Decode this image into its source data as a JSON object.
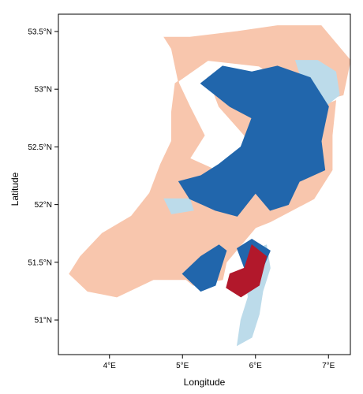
{
  "chart_data": {
    "type": "heatmap",
    "title": "",
    "xlabel": "Longitude",
    "ylabel": "Latitude",
    "xlim": [
      3.3,
      7.3
    ],
    "ylim": [
      50.7,
      53.65
    ],
    "grid": false,
    "legend": "none",
    "x_ticks": [
      {
        "value": 4,
        "label": "4°E"
      },
      {
        "value": 5,
        "label": "5°E"
      },
      {
        "value": 6,
        "label": "6°E"
      },
      {
        "value": 7,
        "label": "7°E"
      }
    ],
    "y_ticks": [
      {
        "value": 51.0,
        "label": "51°N"
      },
      {
        "value": 51.5,
        "label": "51.5°N"
      },
      {
        "value": 52.0,
        "label": "52°N"
      },
      {
        "value": 52.5,
        "label": "52.5°N"
      },
      {
        "value": 53.0,
        "label": "53°N"
      },
      {
        "value": 53.5,
        "label": "53.5°N"
      }
    ],
    "colors": {
      "light_salmon": "#f8c6ad",
      "light_blue": "#bcdbea",
      "dark_blue": "#2166ac",
      "dark_red": "#b2182b"
    },
    "regions": [
      {
        "color": "light_salmon",
        "lon_lat": [
          [
            4.75,
            53.45
          ],
          [
            5.1,
            53.45
          ],
          [
            5.75,
            53.5
          ],
          [
            6.3,
            53.55
          ],
          [
            6.9,
            53.55
          ],
          [
            7.3,
            53.25
          ],
          [
            7.2,
            52.95
          ],
          [
            6.9,
            52.9
          ],
          [
            6.4,
            53.05
          ],
          [
            6.05,
            53.2
          ],
          [
            5.35,
            53.25
          ],
          [
            4.9,
            53.05
          ],
          [
            4.85,
            52.8
          ],
          [
            4.85,
            52.55
          ],
          [
            4.7,
            52.35
          ],
          [
            4.55,
            52.1
          ],
          [
            4.3,
            51.9
          ],
          [
            3.9,
            51.75
          ],
          [
            3.6,
            51.55
          ],
          [
            3.45,
            51.4
          ],
          [
            3.7,
            51.25
          ],
          [
            4.1,
            51.2
          ],
          [
            4.6,
            51.35
          ],
          [
            5.05,
            51.35
          ],
          [
            5.15,
            51.3
          ],
          [
            5.55,
            51.35
          ],
          [
            5.6,
            51.5
          ],
          [
            5.8,
            51.65
          ],
          [
            6.0,
            51.8
          ],
          [
            6.2,
            51.85
          ],
          [
            6.5,
            51.95
          ],
          [
            6.8,
            52.05
          ],
          [
            7.05,
            52.3
          ],
          [
            7.05,
            52.6
          ],
          [
            7.1,
            52.9
          ],
          [
            6.9,
            52.85
          ],
          [
            5.7,
            52.95
          ],
          [
            5.35,
            53.1
          ],
          [
            5.5,
            52.85
          ],
          [
            5.85,
            52.6
          ],
          [
            5.85,
            52.45
          ],
          [
            5.45,
            52.3
          ],
          [
            5.1,
            52.4
          ],
          [
            5.3,
            52.6
          ],
          [
            5.1,
            52.85
          ],
          [
            4.95,
            53.05
          ],
          [
            4.85,
            53.35
          ]
        ]
      },
      {
        "color": "light_blue",
        "lon_lat": [
          [
            5.95,
            51.6
          ],
          [
            6.15,
            51.65
          ],
          [
            6.2,
            51.45
          ],
          [
            6.1,
            51.25
          ],
          [
            6.05,
            51.05
          ],
          [
            5.95,
            50.85
          ],
          [
            5.75,
            50.78
          ],
          [
            5.8,
            51.0
          ],
          [
            5.9,
            51.2
          ],
          [
            5.85,
            51.4
          ]
        ]
      },
      {
        "color": "light_blue",
        "lon_lat": [
          [
            6.55,
            53.25
          ],
          [
            6.85,
            53.25
          ],
          [
            7.1,
            53.15
          ],
          [
            7.15,
            52.95
          ],
          [
            6.95,
            52.85
          ],
          [
            6.7,
            52.95
          ]
        ]
      },
      {
        "color": "light_blue",
        "lon_lat": [
          [
            4.75,
            52.05
          ],
          [
            5.1,
            52.05
          ],
          [
            5.15,
            51.95
          ],
          [
            4.85,
            51.92
          ]
        ]
      },
      {
        "color": "dark_blue",
        "lon_lat": [
          [
            5.25,
            53.05
          ],
          [
            5.55,
            53.2
          ],
          [
            5.95,
            53.15
          ],
          [
            6.3,
            53.2
          ],
          [
            6.75,
            53.1
          ],
          [
            7.0,
            52.85
          ],
          [
            6.9,
            52.55
          ],
          [
            6.95,
            52.3
          ],
          [
            6.6,
            52.2
          ],
          [
            6.45,
            52.0
          ],
          [
            6.2,
            51.95
          ],
          [
            6.0,
            52.1
          ],
          [
            5.75,
            51.9
          ],
          [
            5.45,
            51.95
          ],
          [
            5.1,
            52.05
          ],
          [
            4.95,
            52.2
          ],
          [
            5.25,
            52.25
          ],
          [
            5.5,
            52.35
          ],
          [
            5.8,
            52.5
          ],
          [
            5.95,
            52.75
          ],
          [
            5.65,
            52.85
          ],
          [
            5.45,
            52.95
          ]
        ]
      },
      {
        "color": "dark_blue",
        "lon_lat": [
          [
            5.0,
            51.4
          ],
          [
            5.25,
            51.25
          ],
          [
            5.45,
            51.3
          ],
          [
            5.6,
            51.6
          ],
          [
            5.5,
            51.65
          ],
          [
            5.25,
            51.55
          ]
        ]
      },
      {
        "color": "dark_blue",
        "lon_lat": [
          [
            5.75,
            51.62
          ],
          [
            5.95,
            51.7
          ],
          [
            6.2,
            51.6
          ],
          [
            6.1,
            51.45
          ],
          [
            5.85,
            51.45
          ]
        ]
      },
      {
        "color": "dark_red",
        "lon_lat": [
          [
            5.6,
            51.28
          ],
          [
            5.8,
            51.2
          ],
          [
            6.05,
            51.3
          ],
          [
            6.15,
            51.55
          ],
          [
            5.95,
            51.65
          ],
          [
            5.85,
            51.45
          ],
          [
            5.65,
            51.4
          ]
        ]
      }
    ]
  }
}
